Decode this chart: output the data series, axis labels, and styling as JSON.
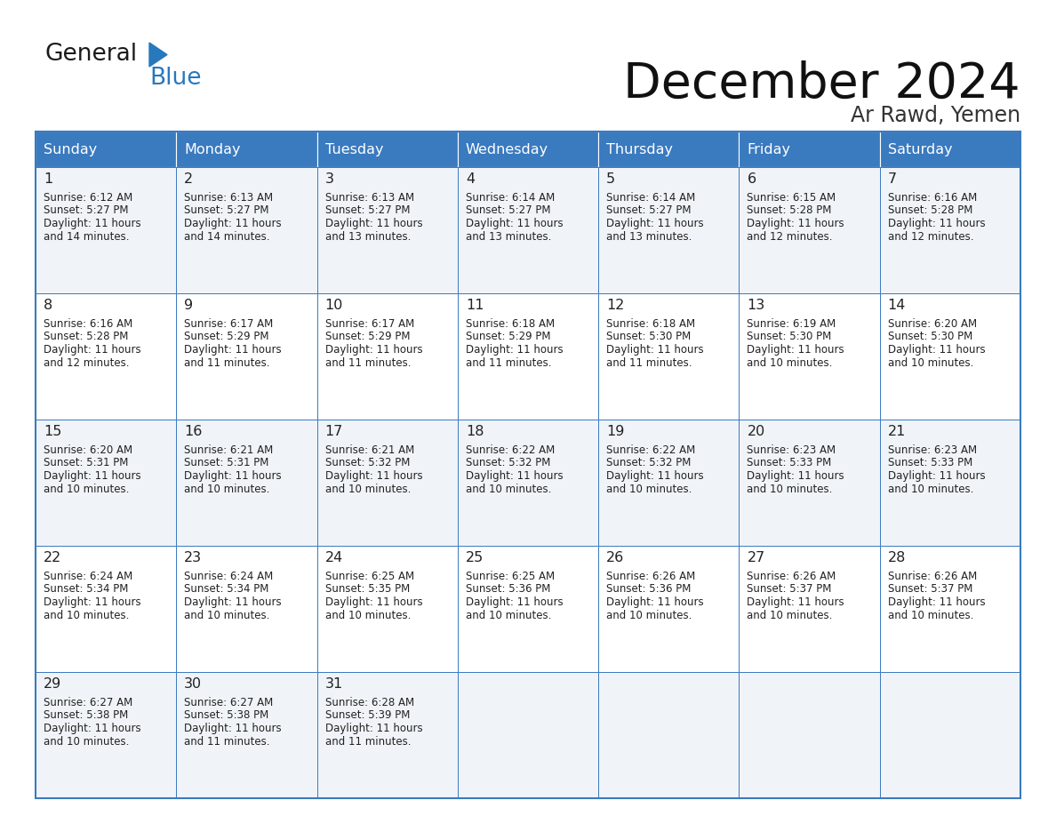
{
  "title": "December 2024",
  "subtitle": "Ar Rawd, Yemen",
  "header_color": "#3a7abf",
  "header_text_color": "#ffffff",
  "days_of_week": [
    "Sunday",
    "Monday",
    "Tuesday",
    "Wednesday",
    "Thursday",
    "Friday",
    "Saturday"
  ],
  "weeks": [
    [
      {
        "day": 1,
        "sunrise": "6:12 AM",
        "sunset": "5:27 PM",
        "daylight_hours": 11,
        "daylight_mins": 14
      },
      {
        "day": 2,
        "sunrise": "6:13 AM",
        "sunset": "5:27 PM",
        "daylight_hours": 11,
        "daylight_mins": 14
      },
      {
        "day": 3,
        "sunrise": "6:13 AM",
        "sunset": "5:27 PM",
        "daylight_hours": 11,
        "daylight_mins": 13
      },
      {
        "day": 4,
        "sunrise": "6:14 AM",
        "sunset": "5:27 PM",
        "daylight_hours": 11,
        "daylight_mins": 13
      },
      {
        "day": 5,
        "sunrise": "6:14 AM",
        "sunset": "5:27 PM",
        "daylight_hours": 11,
        "daylight_mins": 13
      },
      {
        "day": 6,
        "sunrise": "6:15 AM",
        "sunset": "5:28 PM",
        "daylight_hours": 11,
        "daylight_mins": 12
      },
      {
        "day": 7,
        "sunrise": "6:16 AM",
        "sunset": "5:28 PM",
        "daylight_hours": 11,
        "daylight_mins": 12
      }
    ],
    [
      {
        "day": 8,
        "sunrise": "6:16 AM",
        "sunset": "5:28 PM",
        "daylight_hours": 11,
        "daylight_mins": 12
      },
      {
        "day": 9,
        "sunrise": "6:17 AM",
        "sunset": "5:29 PM",
        "daylight_hours": 11,
        "daylight_mins": 11
      },
      {
        "day": 10,
        "sunrise": "6:17 AM",
        "sunset": "5:29 PM",
        "daylight_hours": 11,
        "daylight_mins": 11
      },
      {
        "day": 11,
        "sunrise": "6:18 AM",
        "sunset": "5:29 PM",
        "daylight_hours": 11,
        "daylight_mins": 11
      },
      {
        "day": 12,
        "sunrise": "6:18 AM",
        "sunset": "5:30 PM",
        "daylight_hours": 11,
        "daylight_mins": 11
      },
      {
        "day": 13,
        "sunrise": "6:19 AM",
        "sunset": "5:30 PM",
        "daylight_hours": 11,
        "daylight_mins": 10
      },
      {
        "day": 14,
        "sunrise": "6:20 AM",
        "sunset": "5:30 PM",
        "daylight_hours": 11,
        "daylight_mins": 10
      }
    ],
    [
      {
        "day": 15,
        "sunrise": "6:20 AM",
        "sunset": "5:31 PM",
        "daylight_hours": 11,
        "daylight_mins": 10
      },
      {
        "day": 16,
        "sunrise": "6:21 AM",
        "sunset": "5:31 PM",
        "daylight_hours": 11,
        "daylight_mins": 10
      },
      {
        "day": 17,
        "sunrise": "6:21 AM",
        "sunset": "5:32 PM",
        "daylight_hours": 11,
        "daylight_mins": 10
      },
      {
        "day": 18,
        "sunrise": "6:22 AM",
        "sunset": "5:32 PM",
        "daylight_hours": 11,
        "daylight_mins": 10
      },
      {
        "day": 19,
        "sunrise": "6:22 AM",
        "sunset": "5:32 PM",
        "daylight_hours": 11,
        "daylight_mins": 10
      },
      {
        "day": 20,
        "sunrise": "6:23 AM",
        "sunset": "5:33 PM",
        "daylight_hours": 11,
        "daylight_mins": 10
      },
      {
        "day": 21,
        "sunrise": "6:23 AM",
        "sunset": "5:33 PM",
        "daylight_hours": 11,
        "daylight_mins": 10
      }
    ],
    [
      {
        "day": 22,
        "sunrise": "6:24 AM",
        "sunset": "5:34 PM",
        "daylight_hours": 11,
        "daylight_mins": 10
      },
      {
        "day": 23,
        "sunrise": "6:24 AM",
        "sunset": "5:34 PM",
        "daylight_hours": 11,
        "daylight_mins": 10
      },
      {
        "day": 24,
        "sunrise": "6:25 AM",
        "sunset": "5:35 PM",
        "daylight_hours": 11,
        "daylight_mins": 10
      },
      {
        "day": 25,
        "sunrise": "6:25 AM",
        "sunset": "5:36 PM",
        "daylight_hours": 11,
        "daylight_mins": 10
      },
      {
        "day": 26,
        "sunrise": "6:26 AM",
        "sunset": "5:36 PM",
        "daylight_hours": 11,
        "daylight_mins": 10
      },
      {
        "day": 27,
        "sunrise": "6:26 AM",
        "sunset": "5:37 PM",
        "daylight_hours": 11,
        "daylight_mins": 10
      },
      {
        "day": 28,
        "sunrise": "6:26 AM",
        "sunset": "5:37 PM",
        "daylight_hours": 11,
        "daylight_mins": 10
      }
    ],
    [
      {
        "day": 29,
        "sunrise": "6:27 AM",
        "sunset": "5:38 PM",
        "daylight_hours": 11,
        "daylight_mins": 10
      },
      {
        "day": 30,
        "sunrise": "6:27 AM",
        "sunset": "5:38 PM",
        "daylight_hours": 11,
        "daylight_mins": 11
      },
      {
        "day": 31,
        "sunrise": "6:28 AM",
        "sunset": "5:39 PM",
        "daylight_hours": 11,
        "daylight_mins": 11
      },
      null,
      null,
      null,
      null
    ]
  ],
  "row_colors": [
    "#f0f4f8",
    "#ffffff"
  ],
  "cell_border_color": "#3a7abf",
  "text_color": "#222222",
  "logo_general_color": "#1a1a1a",
  "logo_blue_color": "#2878be",
  "logo_triangle_color": "#2878be",
  "bg_color": "#ffffff"
}
